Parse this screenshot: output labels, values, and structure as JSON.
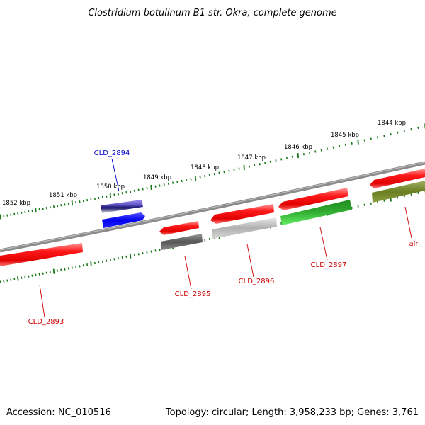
{
  "title": "Clostridium botulinum B1 str. Okra, complete genome",
  "footer": {
    "accession": "Accession: NC_010516",
    "topology": "Topology: circular; Length: 3,958,233 bp; Genes: 3,761"
  },
  "kbp_labels": [
    "1852 kbp",
    "1851 kbp",
    "1850 kbp",
    "1849 kbp",
    "1848 kbp",
    "1847 kbp",
    "1846 kbp",
    "1845 kbp",
    "1844 kbp"
  ],
  "gene_labels": [
    {
      "text": "CLD_2894",
      "color": "#0000cc"
    },
    {
      "text": "CLD_2893",
      "color": "#cc0000"
    },
    {
      "text": "CLD_2895",
      "color": "#cc0000"
    },
    {
      "text": "CLD_2896",
      "color": "#cc0000"
    },
    {
      "text": "CLD_2897",
      "color": "#cc0000"
    },
    {
      "text": "alr",
      "color": "#cc0000"
    }
  ],
  "colors": {
    "backbone": "#808080",
    "tick": "#1a7a1a",
    "gene_red": "#ee1111",
    "gene_blue": "#1111ee",
    "gene_purple": "#6a5acd",
    "gene_gray": "#666666",
    "gene_light_gray": "#bbbbbb",
    "gene_green": "#22bb22",
    "gene_olive": "#6b8e23"
  }
}
